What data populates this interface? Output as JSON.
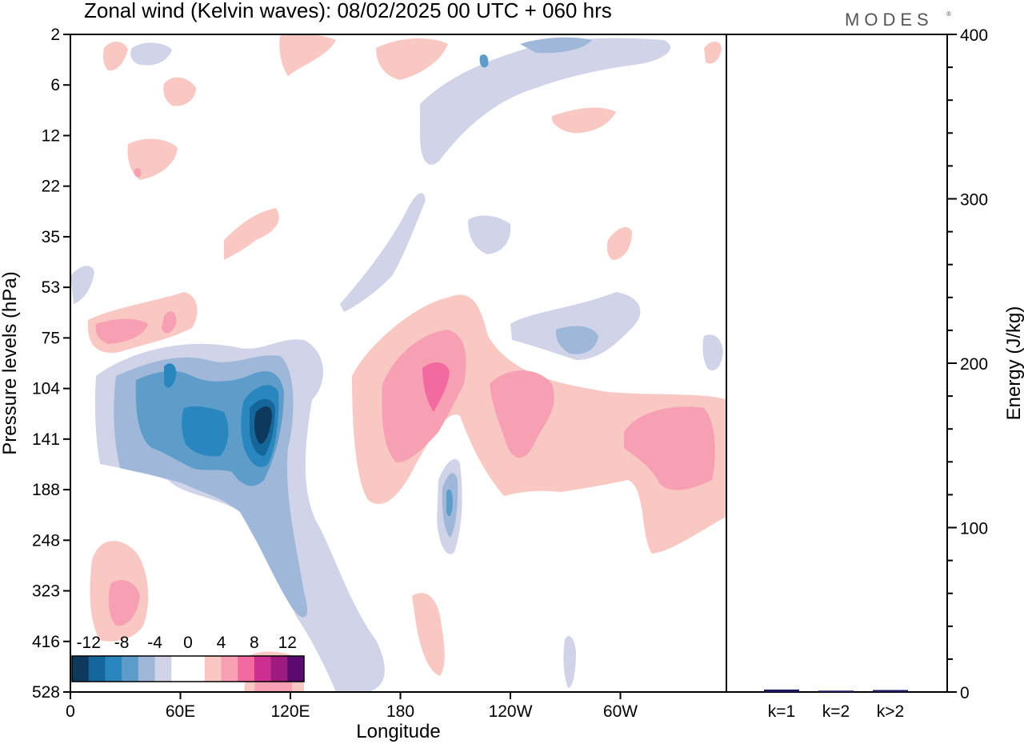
{
  "brand": "MODES",
  "chart_data": [
    {
      "type": "heatmap",
      "title": "Zonal wind (Kelvin waves):  08/02/2025  00 UTC  + 060 hrs",
      "xlabel": "Longitude",
      "ylabel": "Pressure levels (hPa)",
      "x_ticks": [
        "0",
        "60E",
        "120E",
        "180",
        "120W",
        "60W"
      ],
      "y_ticks": [
        "2",
        "6",
        "12",
        "22",
        "35",
        "53",
        "75",
        "104",
        "141",
        "188",
        "248",
        "323",
        "416",
        "528"
      ],
      "colorbar": {
        "labels": [
          "-12",
          "-8",
          "-4",
          "0",
          "4",
          "8",
          "12"
        ],
        "colors": [
          "#0d3a5c",
          "#15669a",
          "#2a86bf",
          "#5e9dc9",
          "#9fb8da",
          "#d1d4e8",
          "#ffffff",
          "#ffffff",
          "#f9c8c2",
          "#f7a0b4",
          "#f26aa0",
          "#cc2f8f",
          "#9e1a7e",
          "#5b0a6e"
        ]
      }
    },
    {
      "type": "bar",
      "ylabel": "Energy (J/kg)",
      "categories": [
        "k=1",
        "k=2",
        "k>2"
      ],
      "values": [
        1.5,
        0.8,
        1.2
      ],
      "ylim": [
        0,
        400
      ],
      "y_ticks": [
        "0",
        "100",
        "200",
        "300",
        "400"
      ],
      "bar_color": "#1a1a5e"
    }
  ]
}
